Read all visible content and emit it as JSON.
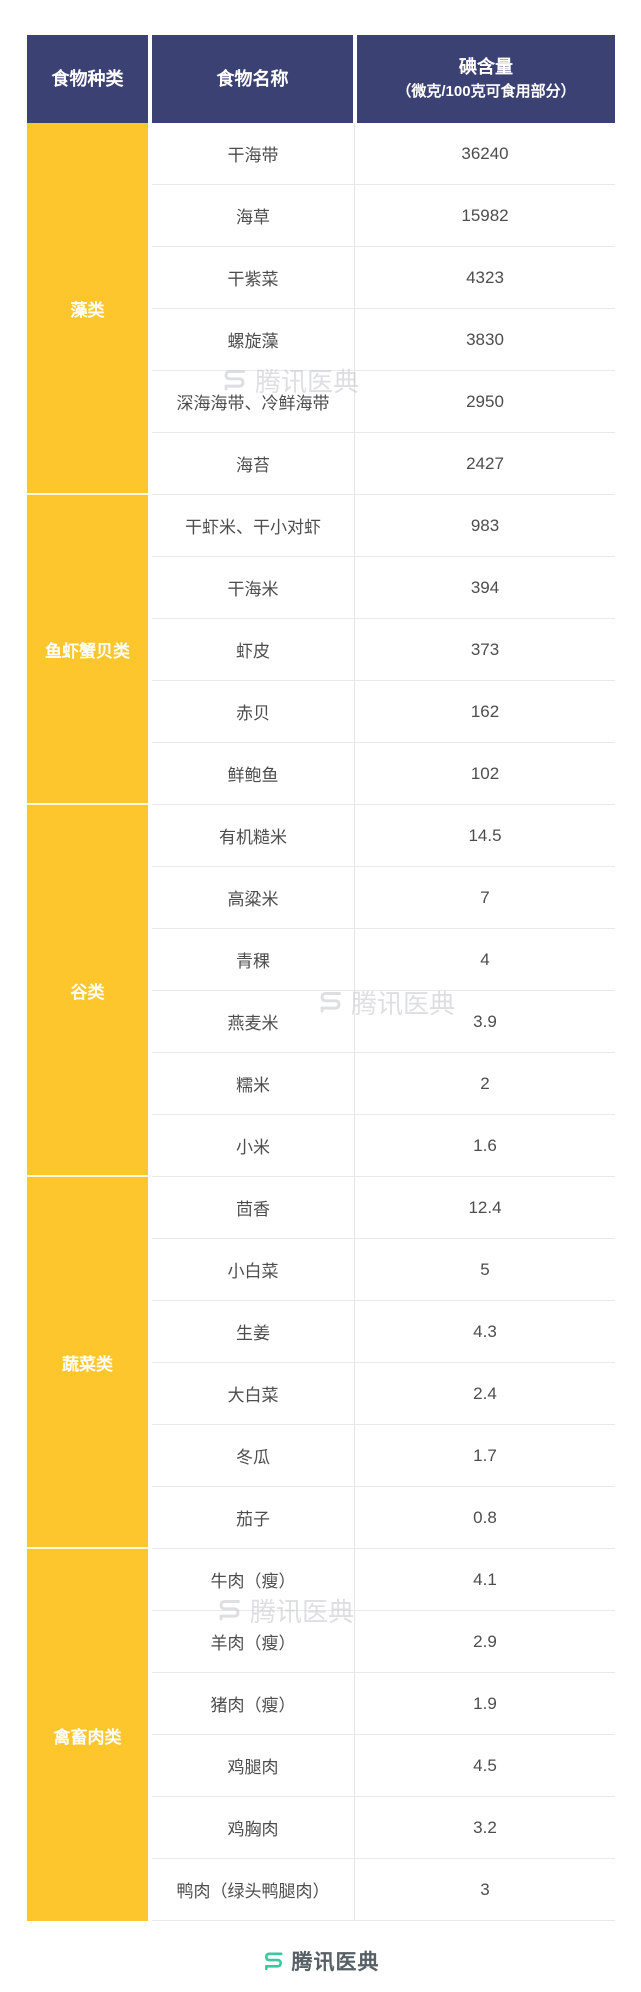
{
  "table": {
    "header": {
      "category": "食物种类",
      "name": "食物名称",
      "iodine_title": "碘含量",
      "iodine_subtitle": "（微克/100克可食用部分）"
    },
    "categories": [
      {
        "name": "藻类",
        "rows": [
          {
            "food": "干海带",
            "value": "36240"
          },
          {
            "food": "海草",
            "value": "15982"
          },
          {
            "food": "干紫菜",
            "value": "4323"
          },
          {
            "food": "螺旋藻",
            "value": "3830"
          },
          {
            "food": "深海海带、冷鲜海带",
            "value": "2950"
          },
          {
            "food": "海苔",
            "value": "2427"
          }
        ]
      },
      {
        "name": "鱼虾蟹贝类",
        "rows": [
          {
            "food": "干虾米、干小对虾",
            "value": "983"
          },
          {
            "food": "干海米",
            "value": "394"
          },
          {
            "food": "虾皮",
            "value": "373"
          },
          {
            "food": "赤贝",
            "value": "162"
          },
          {
            "food": "鲜鲍鱼",
            "value": "102"
          }
        ]
      },
      {
        "name": "谷类",
        "rows": [
          {
            "food": "有机糙米",
            "value": "14.5"
          },
          {
            "food": "高粱米",
            "value": "7"
          },
          {
            "food": "青稞",
            "value": "4"
          },
          {
            "food": "燕麦米",
            "value": "3.9"
          },
          {
            "food": "糯米",
            "value": "2"
          },
          {
            "food": "小米",
            "value": "1.6"
          }
        ]
      },
      {
        "name": "蔬菜类",
        "rows": [
          {
            "food": "茴香",
            "value": "12.4"
          },
          {
            "food": "小白菜",
            "value": "5"
          },
          {
            "food": "生姜",
            "value": "4.3"
          },
          {
            "food": "大白菜",
            "value": "2.4"
          },
          {
            "food": "冬瓜",
            "value": "1.7"
          },
          {
            "food": "茄子",
            "value": "0.8"
          }
        ]
      },
      {
        "name": "禽畜肉类",
        "rows": [
          {
            "food": "牛肉（瘦）",
            "value": "4.1"
          },
          {
            "food": "羊肉（瘦）",
            "value": "2.9"
          },
          {
            "food": "猪肉（瘦）",
            "value": "1.9"
          },
          {
            "food": "鸡腿肉",
            "value": "4.5"
          },
          {
            "food": "鸡胸肉",
            "value": "3.2"
          },
          {
            "food": "鸭肉（绿头鸭腿肉）",
            "value": "3"
          }
        ]
      }
    ]
  },
  "watermark": {
    "text": "腾讯医典"
  },
  "footer": {
    "brand": "腾讯医典"
  },
  "colors": {
    "header_bg": "#3b4173",
    "category_bg": "#fdc62d",
    "brand_teal": "#3ec6a1",
    "body_text": "#4d4d4d",
    "row_line": "#e9e9e9"
  },
  "chart_data": {
    "type": "table",
    "title": "食物碘含量表",
    "columns": [
      "食物种类",
      "食物名称",
      "碘含量（微克/100克可食用部分）"
    ],
    "rows": [
      [
        "藻类",
        "干海带",
        36240
      ],
      [
        "藻类",
        "海草",
        15982
      ],
      [
        "藻类",
        "干紫菜",
        4323
      ],
      [
        "藻类",
        "螺旋藻",
        3830
      ],
      [
        "藻类",
        "深海海带、冷鲜海带",
        2950
      ],
      [
        "藻类",
        "海苔",
        2427
      ],
      [
        "鱼虾蟹贝类",
        "干虾米、干小对虾",
        983
      ],
      [
        "鱼虾蟹贝类",
        "干海米",
        394
      ],
      [
        "鱼虾蟹贝类",
        "虾皮",
        373
      ],
      [
        "鱼虾蟹贝类",
        "赤贝",
        162
      ],
      [
        "鱼虾蟹贝类",
        "鲜鲍鱼",
        102
      ],
      [
        "谷类",
        "有机糙米",
        14.5
      ],
      [
        "谷类",
        "高粱米",
        7
      ],
      [
        "谷类",
        "青稞",
        4
      ],
      [
        "谷类",
        "燕麦米",
        3.9
      ],
      [
        "谷类",
        "糯米",
        2
      ],
      [
        "谷类",
        "小米",
        1.6
      ],
      [
        "蔬菜类",
        "茴香",
        12.4
      ],
      [
        "蔬菜类",
        "小白菜",
        5
      ],
      [
        "蔬菜类",
        "生姜",
        4.3
      ],
      [
        "蔬菜类",
        "大白菜",
        2.4
      ],
      [
        "蔬菜类",
        "冬瓜",
        1.7
      ],
      [
        "蔬菜类",
        "茄子",
        0.8
      ],
      [
        "禽畜肉类",
        "牛肉（瘦）",
        4.1
      ],
      [
        "禽畜肉类",
        "羊肉（瘦）",
        2.9
      ],
      [
        "禽畜肉类",
        "猪肉（瘦）",
        1.9
      ],
      [
        "禽畜肉类",
        "鸡腿肉",
        4.5
      ],
      [
        "禽畜肉类",
        "鸡胸肉",
        3.2
      ],
      [
        "禽畜肉类",
        "鸭肉（绿头鸭腿肉）",
        3
      ]
    ]
  }
}
